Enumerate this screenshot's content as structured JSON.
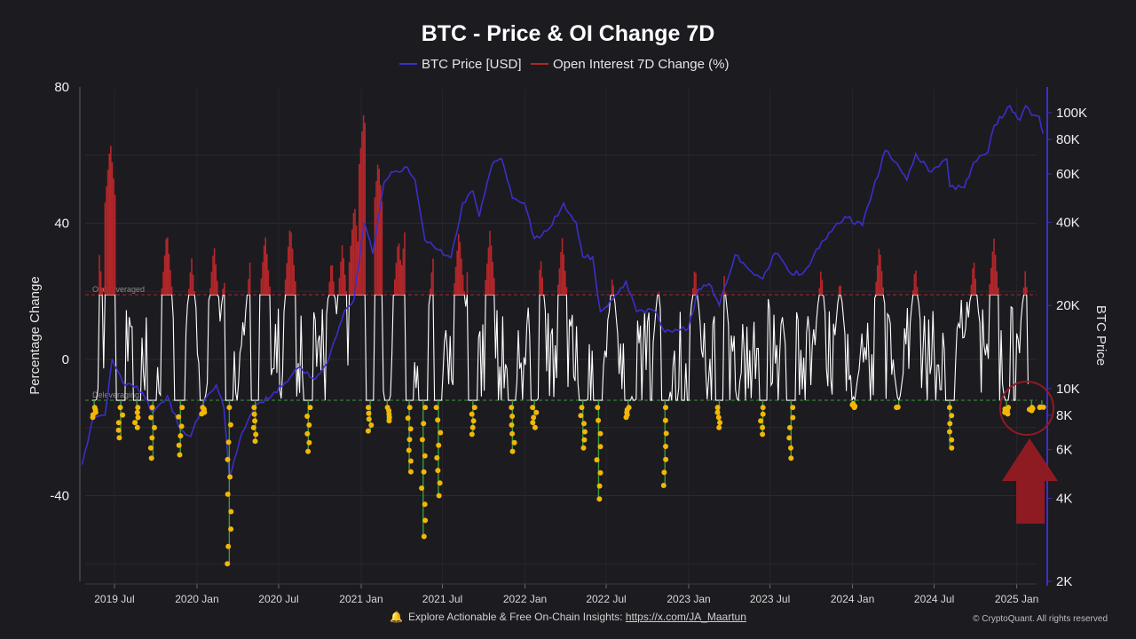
{
  "chart_data": {
    "type": "line",
    "title": "BTC - Price & OI Change 7D",
    "legend": [
      {
        "label": "BTC Price [USD]",
        "color": "#3b2fc9"
      },
      {
        "label": "Open Interest 7D Change (%)",
        "color": "#b2272a"
      }
    ],
    "legend_position": "top-center",
    "ylabel_left": "Percentage Change",
    "ylabel_right": "BTC Price",
    "y_left_range": [
      -66,
      80
    ],
    "y_left_ticks": [
      "80",
      "40",
      "0",
      "-40"
    ],
    "y_left_tick_values": [
      80,
      40,
      0,
      -40
    ],
    "y_right_scale": "log",
    "y_right_range": [
      2000,
      140000
    ],
    "y_right_ticks": [
      "100K",
      "80K",
      "60K",
      "40K",
      "20K",
      "10K",
      "8K",
      "6K",
      "4K",
      "2K"
    ],
    "y_right_tick_values": [
      100000,
      80000,
      60000,
      40000,
      20000,
      10000,
      8000,
      6000,
      4000,
      2000
    ],
    "x_ticks": [
      "2019 Jul",
      "2020 Jan",
      "2020 Jul",
      "2021 Jan",
      "2021 Jul",
      "2022 Jan",
      "2022 Jul",
      "2023 Jan",
      "2023 Jul",
      "2024 Jan",
      "2024 Jul",
      "2025 Jan"
    ],
    "x_tick_dates": [
      "2019-07-01",
      "2020-01-01",
      "2020-07-01",
      "2021-01-01",
      "2021-07-01",
      "2022-01-01",
      "2022-07-01",
      "2023-01-01",
      "2023-07-01",
      "2024-01-01",
      "2024-07-01",
      "2025-01-01"
    ],
    "x_range": [
      "2019-04-15",
      "2025-03-10"
    ],
    "thresholds": [
      {
        "label": "Overleveraged",
        "value": 19,
        "color": "#b2272a"
      },
      {
        "label": "Deleveraging",
        "value": -12,
        "color": "#3c9a3c"
      }
    ],
    "grid": true,
    "btc_price": {
      "name": "BTC Price [USD]",
      "points": [
        [
          "2019-04-20",
          5300
        ],
        [
          "2019-05-15",
          7900
        ],
        [
          "2019-06-10",
          8000
        ],
        [
          "2019-06-26",
          12800
        ],
        [
          "2019-07-20",
          10500
        ],
        [
          "2019-08-20",
          10200
        ],
        [
          "2019-09-25",
          8200
        ],
        [
          "2019-10-27",
          9400
        ],
        [
          "2019-11-25",
          7100
        ],
        [
          "2019-12-18",
          6700
        ],
        [
          "2020-01-15",
          8800
        ],
        [
          "2020-02-13",
          10300
        ],
        [
          "2020-03-01",
          8500
        ],
        [
          "2020-03-13",
          4800
        ],
        [
          "2020-04-10",
          6900
        ],
        [
          "2020-05-10",
          8700
        ],
        [
          "2020-06-15",
          9400
        ],
        [
          "2020-07-27",
          11000
        ],
        [
          "2020-08-17",
          12000
        ],
        [
          "2020-09-20",
          10800
        ],
        [
          "2020-10-22",
          13000
        ],
        [
          "2020-11-24",
          19000
        ],
        [
          "2020-12-16",
          21000
        ],
        [
          "2021-01-08",
          40000
        ],
        [
          "2021-01-27",
          30800
        ],
        [
          "2021-02-21",
          56000
        ],
        [
          "2021-03-14",
          61000
        ],
        [
          "2021-04-14",
          63500
        ],
        [
          "2021-05-01",
          57000
        ],
        [
          "2021-05-23",
          34500
        ],
        [
          "2021-06-22",
          31800
        ],
        [
          "2021-07-20",
          29800
        ],
        [
          "2021-08-15",
          47000
        ],
        [
          "2021-09-07",
          52000
        ],
        [
          "2021-09-21",
          42000
        ],
        [
          "2021-10-20",
          65000
        ],
        [
          "2021-11-10",
          68000
        ],
        [
          "2021-12-04",
          49000
        ],
        [
          "2021-12-31",
          47000
        ],
        [
          "2022-01-22",
          35000
        ],
        [
          "2022-02-24",
          38000
        ],
        [
          "2022-03-28",
          47000
        ],
        [
          "2022-04-25",
          40000
        ],
        [
          "2022-05-10",
          30000
        ],
        [
          "2022-06-01",
          30000
        ],
        [
          "2022-06-18",
          19000
        ],
        [
          "2022-07-15",
          21000
        ],
        [
          "2022-08-14",
          24500
        ],
        [
          "2022-09-07",
          19000
        ],
        [
          "2022-10-15",
          19200
        ],
        [
          "2022-11-09",
          16000
        ],
        [
          "2022-12-31",
          16500
        ],
        [
          "2023-01-23",
          23000
        ],
        [
          "2023-02-15",
          24000
        ],
        [
          "2023-03-10",
          20000
        ],
        [
          "2023-04-14",
          30500
        ],
        [
          "2023-05-15",
          27000
        ],
        [
          "2023-06-15",
          25000
        ],
        [
          "2023-07-13",
          31000
        ],
        [
          "2023-08-18",
          26000
        ],
        [
          "2023-09-15",
          26500
        ],
        [
          "2023-10-24",
          34000
        ],
        [
          "2023-11-15",
          37000
        ],
        [
          "2023-12-15",
          42000
        ],
        [
          "2024-01-23",
          39000
        ],
        [
          "2024-02-15",
          52000
        ],
        [
          "2024-03-14",
          73000
        ],
        [
          "2024-04-15",
          63000
        ],
        [
          "2024-05-01",
          57000
        ],
        [
          "2024-05-21",
          71000
        ],
        [
          "2024-06-25",
          61000
        ],
        [
          "2024-07-29",
          68000
        ],
        [
          "2024-08-05",
          54000
        ],
        [
          "2024-09-06",
          53500
        ],
        [
          "2024-09-27",
          66000
        ],
        [
          "2024-10-29",
          72000
        ],
        [
          "2024-11-12",
          90000
        ],
        [
          "2024-12-17",
          106000
        ],
        [
          "2025-01-08",
          94000
        ],
        [
          "2025-01-21",
          106000
        ],
        [
          "2025-02-03",
          98000
        ],
        [
          "2025-02-20",
          97000
        ],
        [
          "2025-03-01",
          84000
        ]
      ]
    },
    "oi_change": {
      "name": "Open Interest 7D Change (%)",
      "peaks": [
        [
          "2019-05-05",
          35
        ],
        [
          "2019-05-25",
          36
        ],
        [
          "2019-06-22",
          64
        ],
        [
          "2019-07-15",
          28
        ],
        [
          "2019-10-26",
          38
        ],
        [
          "2019-12-20",
          30
        ],
        [
          "2020-02-08",
          34
        ],
        [
          "2020-03-01",
          24
        ],
        [
          "2020-04-29",
          30
        ],
        [
          "2020-06-01",
          37
        ],
        [
          "2020-07-27",
          40
        ],
        [
          "2020-10-27",
          30
        ],
        [
          "2020-11-20",
          34
        ],
        [
          "2020-12-17",
          46
        ],
        [
          "2021-01-07",
          73
        ],
        [
          "2021-02-08",
          59
        ],
        [
          "2021-03-25",
          36
        ],
        [
          "2021-04-13",
          45
        ],
        [
          "2021-06-10",
          30
        ],
        [
          "2021-08-07",
          38
        ],
        [
          "2021-09-05",
          42
        ],
        [
          "2021-10-15",
          38
        ],
        [
          "2022-02-05",
          30
        ],
        [
          "2022-03-25",
          36
        ],
        [
          "2022-07-15",
          25
        ],
        [
          "2022-10-25",
          22
        ],
        [
          "2023-01-15",
          28
        ],
        [
          "2023-03-20",
          26
        ],
        [
          "2023-06-21",
          22
        ],
        [
          "2023-10-23",
          27
        ],
        [
          "2023-12-04",
          24
        ],
        [
          "2024-03-01",
          34
        ],
        [
          "2024-05-20",
          28
        ],
        [
          "2024-09-27",
          30
        ],
        [
          "2024-11-11",
          36
        ],
        [
          "2025-01-20",
          26
        ]
      ]
    },
    "deleveraging_events": [
      [
        "2019-05-17",
        -17
      ],
      [
        "2019-07-15",
        -23
      ],
      [
        "2019-08-20",
        -20
      ],
      [
        "2019-09-25",
        -29
      ],
      [
        "2019-11-25",
        -28
      ],
      [
        "2020-01-15",
        -16
      ],
      [
        "2020-03-13",
        -60
      ],
      [
        "2020-05-10",
        -24
      ],
      [
        "2020-09-05",
        -27
      ],
      [
        "2021-01-21",
        -21
      ],
      [
        "2021-02-28",
        -18
      ],
      [
        "2021-04-18",
        -33
      ],
      [
        "2021-05-19",
        -52
      ],
      [
        "2021-06-22",
        -40
      ],
      [
        "2021-09-07",
        -22
      ],
      [
        "2021-12-04",
        -27
      ],
      [
        "2022-01-22",
        -20
      ],
      [
        "2022-05-10",
        -26
      ],
      [
        "2022-06-14",
        -41
      ],
      [
        "2022-08-19",
        -17
      ],
      [
        "2022-11-09",
        -37
      ],
      [
        "2023-03-10",
        -20
      ],
      [
        "2023-06-15",
        -22
      ],
      [
        "2023-08-17",
        -29
      ],
      [
        "2024-01-05",
        -13
      ],
      [
        "2024-04-13",
        -14
      ],
      [
        "2024-08-05",
        -26
      ],
      [
        "2024-12-09",
        -16
      ],
      [
        "2025-02-03",
        -15
      ],
      [
        "2025-02-26",
        -14
      ]
    ]
  },
  "footer": {
    "text": "Explore Actionable & Free On-Chain Insights:",
    "link": "https://x.com/JA_Maartun",
    "copyright": "© CryptoQuant. All rights reserved"
  }
}
